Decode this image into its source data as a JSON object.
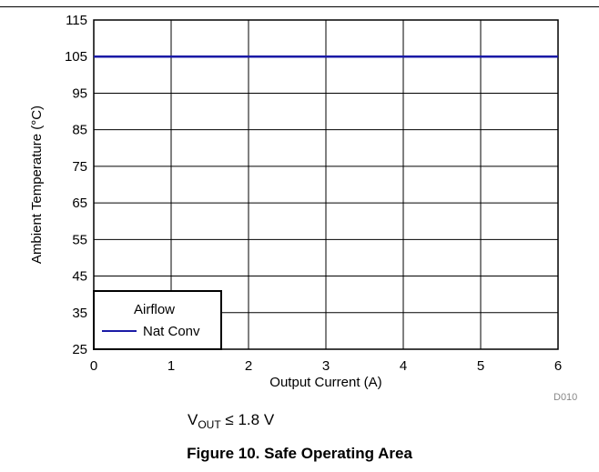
{
  "chart_data": {
    "type": "line",
    "xlabel": "Output Current (A)",
    "ylabel": "Ambient Temperature (°C)",
    "xlim": [
      0,
      6
    ],
    "ylim": [
      25,
      115
    ],
    "xticks": [
      0,
      1,
      2,
      3,
      4,
      5,
      6
    ],
    "yticks": [
      25,
      35,
      45,
      55,
      65,
      75,
      85,
      95,
      105,
      115
    ],
    "grid": true,
    "series": [
      {
        "name": "Nat Conv",
        "color": "#1a1aa6",
        "x": [
          0,
          6
        ],
        "y": [
          105,
          105
        ]
      }
    ],
    "legend": {
      "title": "Airflow",
      "placement": "bottom-left"
    }
  },
  "chart_id": "D010",
  "condition": {
    "prefix": "V",
    "subscript": "OUT",
    "suffix": " ≤ 1.8 V"
  },
  "caption": "Figure 10. Safe Operating Area"
}
